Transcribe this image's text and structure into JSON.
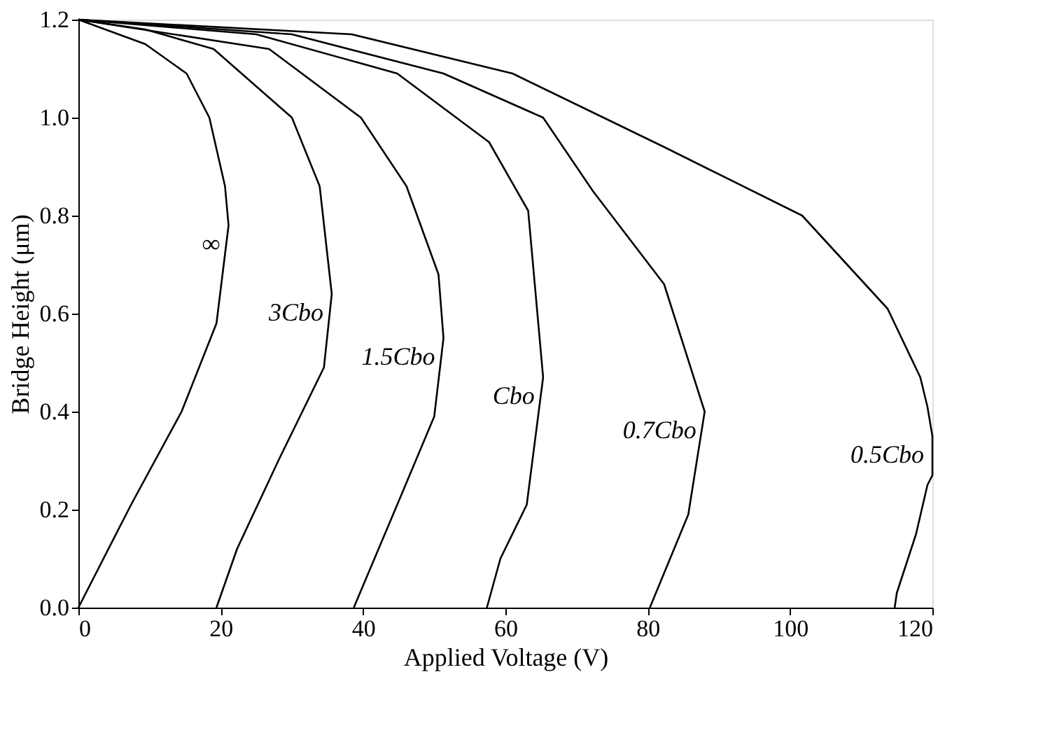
{
  "chart_data": {
    "type": "line",
    "xlabel": "Applied Voltage (V)",
    "ylabel": "Bridge Height (μm)",
    "xlim": [
      0,
      120
    ],
    "xticks": [
      0,
      20,
      40,
      60,
      80,
      100,
      120
    ],
    "ylim": [
      0,
      1.2
    ],
    "yticks": [
      {
        "value": 0,
        "label": "0.0"
      },
      0.2,
      0.4,
      0.6,
      0.8,
      {
        "value": 1,
        "label": "1.0"
      },
      1.2
    ],
    "grid": false,
    "marker": "none",
    "line_style": "solid",
    "series": [
      {
        "name": "∞",
        "color": "#000000",
        "x": [
          0,
          9.4,
          15.2,
          18.4,
          20.6,
          21.1,
          19.4,
          14.5,
          7.4,
          0
        ],
        "values": [
          1.2,
          1.15,
          1.09,
          1.0,
          0.86,
          0.78,
          0.58,
          0.4,
          0.21,
          0
        ]
      },
      {
        "name": "3Cbo",
        "color": "#000000",
        "x": [
          0,
          9.4,
          19,
          30,
          33.9,
          35.6,
          34.5,
          28.1,
          22.3,
          19.4
        ],
        "values": [
          1.2,
          1.18,
          1.14,
          1.0,
          0.86,
          0.64,
          0.49,
          0.3,
          0.12,
          0
        ]
      },
      {
        "name": "1.5Cbo",
        "color": "#000000",
        "x": [
          0,
          26.8,
          39.7,
          46.1,
          50.6,
          51.3,
          50,
          44.8,
          38.7
        ],
        "values": [
          1.2,
          1.14,
          1.0,
          0.86,
          0.68,
          0.55,
          0.39,
          0.21,
          0
        ]
      },
      {
        "name": "Cbo",
        "color": "#000000",
        "x": [
          0,
          25,
          44.8,
          57.7,
          63.2,
          65.3,
          63,
          59.3,
          57.4
        ],
        "values": [
          1.2,
          1.17,
          1.09,
          0.95,
          0.81,
          0.47,
          0.21,
          0.1,
          0
        ]
      },
      {
        "name": "0.7Cbo",
        "color": "#000000",
        "x": [
          0,
          30,
          51.3,
          65.3,
          72.3,
          82.3,
          88,
          85.7,
          80.3
        ],
        "values": [
          1.2,
          1.17,
          1.09,
          1.0,
          0.85,
          0.66,
          0.4,
          0.19,
          0
        ]
      },
      {
        "name": "0.5Cbo",
        "color": "#000000",
        "x": [
          0,
          38.4,
          61,
          82.3,
          101.7,
          113.7,
          118.3,
          119.3,
          120,
          120,
          119.3,
          117.7,
          115,
          114.7
        ],
        "values": [
          1.2,
          1.17,
          1.09,
          0.94,
          0.8,
          0.61,
          0.47,
          0.41,
          0.35,
          0.27,
          0.25,
          0.15,
          0.03,
          0
        ]
      }
    ]
  }
}
